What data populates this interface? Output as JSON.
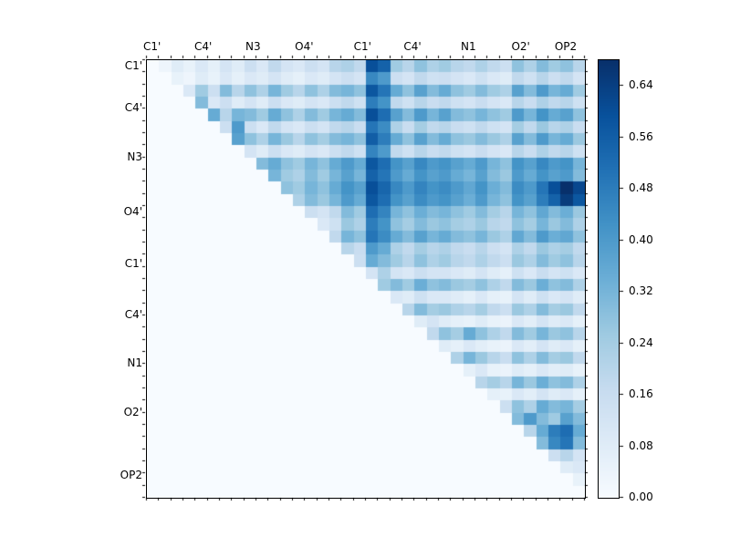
{
  "figure": {
    "background": "#ffffff"
  },
  "chart_data": {
    "type": "heatmap",
    "n": 36,
    "title": "",
    "xlabel": "",
    "ylabel": "",
    "x_tick_labels": [
      "C1'",
      "C4'",
      "N3",
      "O4'",
      "C1'",
      "C4'",
      "N1",
      "O2'",
      "OP2"
    ],
    "x_tick_cells": [
      0.5,
      4.7,
      8.8,
      13.0,
      17.8,
      21.9,
      26.5,
      30.8,
      34.5
    ],
    "y_tick_labels": [
      "C1'",
      "C4'",
      "N3",
      "O4'",
      "C1'",
      "C4'",
      "N1",
      "O2'",
      "OP2"
    ],
    "y_tick_cells": [
      0.5,
      4.0,
      8.0,
      12.5,
      16.8,
      21.0,
      25.0,
      29.0,
      34.2
    ],
    "vmin": 0.0,
    "vmax": 0.68,
    "colormap": "Blues",
    "colormap_stops": [
      [
        247,
        251,
        255
      ],
      [
        222,
        235,
        247
      ],
      [
        198,
        219,
        239
      ],
      [
        158,
        202,
        225
      ],
      [
        107,
        174,
        214
      ],
      [
        66,
        146,
        198
      ],
      [
        33,
        113,
        181
      ],
      [
        8,
        81,
        156
      ],
      [
        8,
        48,
        107
      ]
    ],
    "colorbar_ticks": [
      "0.00",
      "0.08",
      "0.16",
      "0.24",
      "0.32",
      "0.40",
      "0.48",
      "0.56",
      "0.64"
    ],
    "colorbar_tick_values": [
      0.0,
      0.08,
      0.16,
      0.24,
      0.32,
      0.4,
      0.48,
      0.56,
      0.64
    ],
    "matrix_format": "upper_triangle_offset_rows",
    "rows": [
      [
        0.03,
        0.08,
        0.05,
        0.1,
        0.06,
        0.12,
        0.08,
        0.15,
        0.1,
        0.18,
        0.12,
        0.1,
        0.15,
        0.12,
        0.2,
        0.22,
        0.18,
        0.6,
        0.55,
        0.25,
        0.2,
        0.28,
        0.22,
        0.25,
        0.2,
        0.18,
        0.22,
        0.18,
        0.15,
        0.28,
        0.22,
        0.3,
        0.25,
        0.28,
        0.2
      ],
      [
        0.05,
        0.03,
        0.08,
        0.05,
        0.1,
        0.06,
        0.1,
        0.08,
        0.12,
        0.08,
        0.06,
        0.1,
        0.08,
        0.12,
        0.15,
        0.12,
        0.45,
        0.4,
        0.15,
        0.12,
        0.18,
        0.14,
        0.15,
        0.12,
        0.1,
        0.14,
        0.1,
        0.08,
        0.18,
        0.14,
        0.2,
        0.15,
        0.18,
        0.12
      ],
      [
        0.1,
        0.25,
        0.15,
        0.3,
        0.2,
        0.28,
        0.22,
        0.32,
        0.25,
        0.2,
        0.28,
        0.22,
        0.3,
        0.32,
        0.28,
        0.58,
        0.5,
        0.35,
        0.28,
        0.38,
        0.3,
        0.35,
        0.28,
        0.25,
        0.3,
        0.25,
        0.22,
        0.38,
        0.3,
        0.4,
        0.32,
        0.35,
        0.25
      ],
      [
        0.3,
        0.1,
        0.15,
        0.08,
        0.12,
        0.08,
        0.15,
        0.1,
        0.08,
        0.12,
        0.1,
        0.15,
        0.18,
        0.14,
        0.48,
        0.42,
        0.18,
        0.14,
        0.2,
        0.16,
        0.18,
        0.14,
        0.12,
        0.16,
        0.12,
        0.1,
        0.2,
        0.16,
        0.22,
        0.18,
        0.2,
        0.14
      ],
      [
        0.35,
        0.2,
        0.32,
        0.3,
        0.25,
        0.35,
        0.28,
        0.22,
        0.3,
        0.25,
        0.32,
        0.35,
        0.3,
        0.6,
        0.52,
        0.38,
        0.3,
        0.4,
        0.32,
        0.38,
        0.3,
        0.28,
        0.32,
        0.28,
        0.25,
        0.4,
        0.32,
        0.42,
        0.35,
        0.38,
        0.28
      ],
      [
        0.15,
        0.4,
        0.15,
        0.1,
        0.18,
        0.12,
        0.1,
        0.15,
        0.12,
        0.18,
        0.2,
        0.16,
        0.5,
        0.44,
        0.22,
        0.16,
        0.24,
        0.18,
        0.2,
        0.16,
        0.14,
        0.18,
        0.14,
        0.12,
        0.24,
        0.18,
        0.26,
        0.2,
        0.22,
        0.16
      ],
      [
        0.38,
        0.28,
        0.22,
        0.32,
        0.26,
        0.2,
        0.28,
        0.24,
        0.3,
        0.32,
        0.28,
        0.56,
        0.48,
        0.35,
        0.28,
        0.38,
        0.3,
        0.35,
        0.28,
        0.26,
        0.3,
        0.26,
        0.22,
        0.38,
        0.3,
        0.4,
        0.32,
        0.35,
        0.26
      ],
      [
        0.12,
        0.08,
        0.15,
        0.1,
        0.08,
        0.12,
        0.1,
        0.15,
        0.18,
        0.14,
        0.46,
        0.4,
        0.18,
        0.14,
        0.2,
        0.16,
        0.18,
        0.14,
        0.12,
        0.16,
        0.12,
        0.1,
        0.2,
        0.16,
        0.22,
        0.18,
        0.2,
        0.14
      ],
      [
        0.3,
        0.35,
        0.28,
        0.25,
        0.32,
        0.28,
        0.35,
        0.4,
        0.35,
        0.58,
        0.52,
        0.42,
        0.38,
        0.45,
        0.4,
        0.42,
        0.38,
        0.35,
        0.4,
        0.32,
        0.28,
        0.42,
        0.38,
        0.45,
        0.4,
        0.42,
        0.32
      ],
      [
        0.32,
        0.25,
        0.22,
        0.3,
        0.25,
        0.32,
        0.38,
        0.32,
        0.55,
        0.5,
        0.4,
        0.35,
        0.42,
        0.38,
        0.4,
        0.35,
        0.32,
        0.38,
        0.3,
        0.26,
        0.4,
        0.35,
        0.42,
        0.38,
        0.4,
        0.3
      ],
      [
        0.28,
        0.25,
        0.32,
        0.28,
        0.35,
        0.42,
        0.38,
        0.6,
        0.54,
        0.45,
        0.4,
        0.46,
        0.42,
        0.44,
        0.4,
        0.36,
        0.42,
        0.34,
        0.3,
        0.44,
        0.4,
        0.5,
        0.6,
        0.68,
        0.62
      ],
      [
        0.22,
        0.3,
        0.26,
        0.32,
        0.4,
        0.35,
        0.58,
        0.52,
        0.42,
        0.38,
        0.44,
        0.4,
        0.42,
        0.38,
        0.34,
        0.4,
        0.32,
        0.28,
        0.42,
        0.38,
        0.48,
        0.55,
        0.65,
        0.58
      ],
      [
        0.15,
        0.12,
        0.18,
        0.3,
        0.25,
        0.52,
        0.46,
        0.32,
        0.28,
        0.34,
        0.3,
        0.32,
        0.28,
        0.25,
        0.3,
        0.24,
        0.2,
        0.32,
        0.28,
        0.36,
        0.3,
        0.34,
        0.26
      ],
      [
        0.1,
        0.14,
        0.26,
        0.22,
        0.48,
        0.42,
        0.28,
        0.24,
        0.3,
        0.26,
        0.28,
        0.24,
        0.22,
        0.26,
        0.2,
        0.18,
        0.28,
        0.24,
        0.32,
        0.26,
        0.3,
        0.22
      ],
      [
        0.18,
        0.32,
        0.28,
        0.5,
        0.44,
        0.35,
        0.3,
        0.38,
        0.32,
        0.35,
        0.3,
        0.28,
        0.32,
        0.26,
        0.22,
        0.36,
        0.3,
        0.4,
        0.34,
        0.36,
        0.28
      ],
      [
        0.2,
        0.16,
        0.4,
        0.35,
        0.22,
        0.18,
        0.24,
        0.2,
        0.22,
        0.18,
        0.16,
        0.2,
        0.15,
        0.12,
        0.22,
        0.18,
        0.26,
        0.22,
        0.24,
        0.18
      ],
      [
        0.15,
        0.35,
        0.3,
        0.25,
        0.2,
        0.28,
        0.22,
        0.25,
        0.2,
        0.18,
        0.22,
        0.18,
        0.15,
        0.26,
        0.22,
        0.3,
        0.25,
        0.28,
        0.2
      ],
      [
        0.12,
        0.22,
        0.12,
        0.1,
        0.15,
        0.12,
        0.12,
        0.1,
        0.08,
        0.12,
        0.08,
        0.06,
        0.14,
        0.1,
        0.16,
        0.12,
        0.14,
        0.1
      ],
      [
        0.25,
        0.3,
        0.25,
        0.34,
        0.28,
        0.3,
        0.26,
        0.24,
        0.28,
        0.22,
        0.18,
        0.3,
        0.26,
        0.34,
        0.28,
        0.3,
        0.22
      ],
      [
        0.1,
        0.08,
        0.14,
        0.1,
        0.1,
        0.08,
        0.06,
        0.1,
        0.06,
        0.05,
        0.12,
        0.08,
        0.14,
        0.1,
        0.12,
        0.08
      ],
      [
        0.2,
        0.3,
        0.24,
        0.26,
        0.22,
        0.2,
        0.24,
        0.18,
        0.15,
        0.26,
        0.22,
        0.3,
        0.24,
        0.26,
        0.18
      ],
      [
        0.08,
        0.12,
        0.08,
        0.06,
        0.05,
        0.08,
        0.05,
        0.04,
        0.1,
        0.07,
        0.12,
        0.08,
        0.1,
        0.06
      ],
      [
        0.18,
        0.28,
        0.24,
        0.35,
        0.28,
        0.22,
        0.18,
        0.3,
        0.25,
        0.32,
        0.26,
        0.28,
        0.2
      ],
      [
        0.08,
        0.06,
        0.1,
        0.07,
        0.05,
        0.04,
        0.1,
        0.07,
        0.12,
        0.08,
        0.1,
        0.06
      ],
      [
        0.22,
        0.32,
        0.26,
        0.2,
        0.16,
        0.28,
        0.22,
        0.3,
        0.24,
        0.26,
        0.18
      ],
      [
        0.06,
        0.1,
        0.05,
        0.04,
        0.08,
        0.06,
        0.1,
        0.07,
        0.08,
        0.05
      ],
      [
        0.2,
        0.24,
        0.2,
        0.32,
        0.26,
        0.34,
        0.28,
        0.3,
        0.22
      ],
      [
        0.06,
        0.05,
        0.1,
        0.07,
        0.12,
        0.08,
        0.1,
        0.06
      ],
      [
        0.15,
        0.28,
        0.22,
        0.35,
        0.3,
        0.32,
        0.24
      ],
      [
        0.3,
        0.4,
        0.3,
        0.25,
        0.38,
        0.3
      ],
      [
        0.2,
        0.35,
        0.48,
        0.52,
        0.35
      ],
      [
        0.3,
        0.45,
        0.5,
        0.3
      ],
      [
        0.15,
        0.2,
        0.12
      ],
      [
        0.08,
        0.1
      ],
      [
        0.05
      ],
      []
    ]
  }
}
